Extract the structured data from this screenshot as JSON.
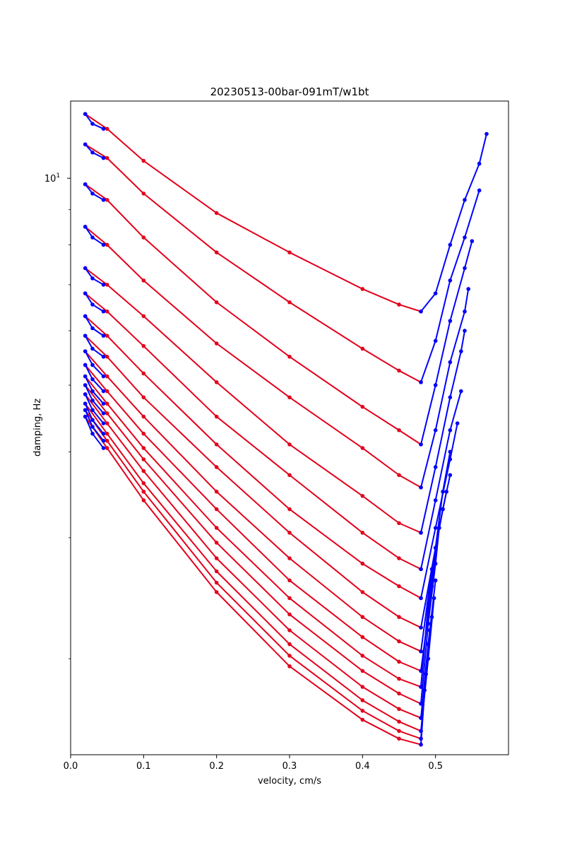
{
  "chart_data": {
    "type": "line",
    "title": "20230513-00bar-091mT/w1bt",
    "xlabel": "velocity, cm/s",
    "ylabel": "damping, Hz",
    "xscale": "linear",
    "yscale": "log",
    "xlim": [
      0.0,
      0.6
    ],
    "ylim": [
      1.45,
      12.95
    ],
    "grid": false,
    "xticks": [
      {
        "value": 0.0,
        "label": "0.0"
      },
      {
        "value": 0.1,
        "label": "0.1"
      },
      {
        "value": 0.2,
        "label": "0.2"
      },
      {
        "value": 0.3,
        "label": "0.3"
      },
      {
        "value": 0.4,
        "label": "0.4"
      },
      {
        "value": 0.5,
        "label": "0.5"
      }
    ],
    "ytick_major": {
      "value": 10,
      "label_base": "10",
      "label_exp": "1"
    },
    "ytick_minor": [
      2,
      3,
      4,
      5,
      6,
      7,
      8,
      9
    ],
    "colors": {
      "low_velocity": "#0000ff",
      "sweep": "#e3001b"
    },
    "series": [
      {
        "color_key": "sweep",
        "values": [
          [
            0.02,
            12.4
          ],
          [
            0.05,
            11.8
          ],
          [
            0.1,
            10.6
          ],
          [
            0.2,
            8.9
          ],
          [
            0.3,
            7.8
          ],
          [
            0.4,
            6.9
          ],
          [
            0.45,
            6.55
          ],
          [
            0.48,
            6.4
          ]
        ]
      },
      {
        "color_key": "sweep",
        "values": [
          [
            0.02,
            11.2
          ],
          [
            0.05,
            10.7
          ],
          [
            0.1,
            9.5
          ],
          [
            0.2,
            7.8
          ],
          [
            0.3,
            6.6
          ],
          [
            0.4,
            5.65
          ],
          [
            0.45,
            5.25
          ],
          [
            0.48,
            5.05
          ]
        ]
      },
      {
        "color_key": "sweep",
        "values": [
          [
            0.02,
            9.8
          ],
          [
            0.05,
            9.3
          ],
          [
            0.1,
            8.2
          ],
          [
            0.2,
            6.6
          ],
          [
            0.3,
            5.5
          ],
          [
            0.4,
            4.65
          ],
          [
            0.45,
            4.3
          ],
          [
            0.48,
            4.1
          ]
        ]
      },
      {
        "color_key": "sweep",
        "values": [
          [
            0.02,
            8.5
          ],
          [
            0.05,
            8.0
          ],
          [
            0.1,
            7.1
          ],
          [
            0.2,
            5.75
          ],
          [
            0.3,
            4.8
          ],
          [
            0.4,
            4.05
          ],
          [
            0.45,
            3.7
          ],
          [
            0.48,
            3.55
          ]
        ]
      },
      {
        "color_key": "sweep",
        "values": [
          [
            0.02,
            7.4
          ],
          [
            0.05,
            7.0
          ],
          [
            0.1,
            6.3
          ],
          [
            0.2,
            5.05
          ],
          [
            0.3,
            4.1
          ],
          [
            0.4,
            3.45
          ],
          [
            0.45,
            3.15
          ],
          [
            0.48,
            3.05
          ]
        ]
      },
      {
        "color_key": "sweep",
        "values": [
          [
            0.02,
            6.8
          ],
          [
            0.05,
            6.4
          ],
          [
            0.1,
            5.7
          ],
          [
            0.2,
            4.5
          ],
          [
            0.3,
            3.7
          ],
          [
            0.4,
            3.05
          ],
          [
            0.45,
            2.8
          ],
          [
            0.48,
            2.7
          ]
        ]
      },
      {
        "color_key": "sweep",
        "values": [
          [
            0.02,
            6.3
          ],
          [
            0.05,
            5.9
          ],
          [
            0.1,
            5.2
          ],
          [
            0.2,
            4.1
          ],
          [
            0.3,
            3.3
          ],
          [
            0.4,
            2.75
          ],
          [
            0.45,
            2.55
          ],
          [
            0.48,
            2.45
          ]
        ]
      },
      {
        "color_key": "sweep",
        "values": [
          [
            0.02,
            5.9
          ],
          [
            0.05,
            5.5
          ],
          [
            0.1,
            4.8
          ],
          [
            0.2,
            3.8
          ],
          [
            0.3,
            3.05
          ],
          [
            0.4,
            2.5
          ],
          [
            0.45,
            2.3
          ],
          [
            0.48,
            2.22
          ]
        ]
      },
      {
        "color_key": "sweep",
        "values": [
          [
            0.02,
            5.6
          ],
          [
            0.05,
            5.15
          ],
          [
            0.1,
            4.5
          ],
          [
            0.2,
            3.5
          ],
          [
            0.3,
            2.8
          ],
          [
            0.4,
            2.3
          ],
          [
            0.45,
            2.12
          ],
          [
            0.48,
            2.05
          ]
        ]
      },
      {
        "color_key": "sweep",
        "values": [
          [
            0.02,
            5.35
          ],
          [
            0.05,
            4.9
          ],
          [
            0.1,
            4.25
          ],
          [
            0.2,
            3.3
          ],
          [
            0.3,
            2.6
          ],
          [
            0.4,
            2.15
          ],
          [
            0.45,
            1.98
          ],
          [
            0.48,
            1.92
          ]
        ]
      },
      {
        "color_key": "sweep",
        "values": [
          [
            0.02,
            5.15
          ],
          [
            0.05,
            4.7
          ],
          [
            0.1,
            4.05
          ],
          [
            0.2,
            3.1
          ],
          [
            0.3,
            2.45
          ],
          [
            0.4,
            2.02
          ],
          [
            0.45,
            1.87
          ],
          [
            0.48,
            1.82
          ]
        ]
      },
      {
        "color_key": "sweep",
        "values": [
          [
            0.02,
            5.0
          ],
          [
            0.05,
            4.55
          ],
          [
            0.1,
            3.9
          ],
          [
            0.2,
            2.95
          ],
          [
            0.3,
            2.32
          ],
          [
            0.4,
            1.92
          ],
          [
            0.45,
            1.78
          ],
          [
            0.48,
            1.72
          ]
        ]
      },
      {
        "color_key": "sweep",
        "values": [
          [
            0.02,
            4.85
          ],
          [
            0.05,
            4.4
          ],
          [
            0.1,
            3.75
          ],
          [
            0.2,
            2.8
          ],
          [
            0.3,
            2.2
          ],
          [
            0.4,
            1.82
          ],
          [
            0.45,
            1.69
          ],
          [
            0.48,
            1.64
          ]
        ]
      },
      {
        "color_key": "sweep",
        "values": [
          [
            0.02,
            4.7
          ],
          [
            0.05,
            4.25
          ],
          [
            0.1,
            3.6
          ],
          [
            0.2,
            2.68
          ],
          [
            0.3,
            2.1
          ],
          [
            0.4,
            1.74
          ],
          [
            0.45,
            1.62
          ],
          [
            0.48,
            1.57
          ]
        ]
      },
      {
        "color_key": "sweep",
        "values": [
          [
            0.02,
            4.6
          ],
          [
            0.05,
            4.15
          ],
          [
            0.1,
            3.5
          ],
          [
            0.2,
            2.58
          ],
          [
            0.3,
            2.02
          ],
          [
            0.4,
            1.68
          ],
          [
            0.45,
            1.57
          ],
          [
            0.48,
            1.53
          ]
        ]
      },
      {
        "color_key": "sweep",
        "values": [
          [
            0.02,
            4.5
          ],
          [
            0.05,
            4.05
          ],
          [
            0.1,
            3.4
          ],
          [
            0.2,
            2.5
          ],
          [
            0.3,
            1.95
          ],
          [
            0.4,
            1.63
          ],
          [
            0.45,
            1.53
          ],
          [
            0.48,
            1.5
          ]
        ]
      },
      {
        "color_key": "low_velocity",
        "values": [
          [
            0.48,
            6.4
          ],
          [
            0.5,
            6.8
          ],
          [
            0.52,
            8.0
          ],
          [
            0.54,
            9.3
          ],
          [
            0.56,
            10.5
          ],
          [
            0.57,
            11.6
          ]
        ]
      },
      {
        "color_key": "low_velocity",
        "values": [
          [
            0.48,
            5.05
          ],
          [
            0.5,
            5.8
          ],
          [
            0.52,
            7.1
          ],
          [
            0.54,
            8.2
          ],
          [
            0.56,
            9.6
          ]
        ]
      },
      {
        "color_key": "low_velocity",
        "values": [
          [
            0.48,
            4.1
          ],
          [
            0.5,
            5.0
          ],
          [
            0.52,
            6.2
          ],
          [
            0.54,
            7.4
          ],
          [
            0.55,
            8.1
          ]
        ]
      },
      {
        "color_key": "low_velocity",
        "values": [
          [
            0.48,
            3.55
          ],
          [
            0.5,
            4.3
          ],
          [
            0.52,
            5.4
          ],
          [
            0.54,
            6.4
          ],
          [
            0.545,
            6.9
          ]
        ]
      },
      {
        "color_key": "low_velocity",
        "values": [
          [
            0.48,
            3.05
          ],
          [
            0.5,
            3.8
          ],
          [
            0.52,
            4.8
          ],
          [
            0.535,
            5.6
          ],
          [
            0.54,
            6.0
          ]
        ]
      },
      {
        "color_key": "low_velocity",
        "values": [
          [
            0.48,
            2.7
          ],
          [
            0.5,
            3.4
          ],
          [
            0.52,
            4.3
          ],
          [
            0.535,
            4.9
          ]
        ]
      },
      {
        "color_key": "low_velocity",
        "values": [
          [
            0.48,
            2.45
          ],
          [
            0.5,
            3.1
          ],
          [
            0.52,
            3.9
          ],
          [
            0.53,
            4.4
          ]
        ]
      },
      {
        "color_key": "low_velocity",
        "values": [
          [
            0.48,
            2.22
          ],
          [
            0.5,
            2.9
          ],
          [
            0.51,
            3.5
          ],
          [
            0.52,
            4.0
          ]
        ]
      },
      {
        "color_key": "low_velocity",
        "values": [
          [
            0.48,
            2.05
          ],
          [
            0.495,
            2.7
          ],
          [
            0.51,
            3.3
          ],
          [
            0.52,
            3.7
          ]
        ]
      },
      {
        "color_key": "low_velocity",
        "values": [
          [
            0.48,
            1.92
          ],
          [
            0.495,
            2.55
          ],
          [
            0.505,
            3.1
          ],
          [
            0.515,
            3.5
          ]
        ]
      },
      {
        "color_key": "low_velocity",
        "values": [
          [
            0.48,
            1.82
          ],
          [
            0.49,
            2.4
          ],
          [
            0.5,
            2.9
          ],
          [
            0.51,
            3.3
          ]
        ]
      },
      {
        "color_key": "low_velocity",
        "values": [
          [
            0.48,
            1.72
          ],
          [
            0.49,
            2.25
          ],
          [
            0.5,
            2.75
          ],
          [
            0.505,
            3.1
          ]
        ]
      },
      {
        "color_key": "low_velocity",
        "values": [
          [
            0.48,
            1.64
          ],
          [
            0.49,
            2.1
          ],
          [
            0.5,
            2.6
          ]
        ]
      },
      {
        "color_key": "low_velocity",
        "values": [
          [
            0.48,
            1.57
          ],
          [
            0.49,
            2.0
          ],
          [
            0.498,
            2.45
          ]
        ]
      },
      {
        "color_key": "low_velocity",
        "values": [
          [
            0.48,
            1.53
          ],
          [
            0.487,
            1.9
          ],
          [
            0.495,
            2.3
          ]
        ]
      },
      {
        "color_key": "low_velocity",
        "values": [
          [
            0.48,
            1.5
          ],
          [
            0.485,
            1.8
          ],
          [
            0.492,
            2.2
          ]
        ]
      },
      {
        "color_key": "low_velocity",
        "values": [
          [
            0.02,
            12.4
          ],
          [
            0.03,
            12.0
          ],
          [
            0.045,
            11.8
          ]
        ]
      },
      {
        "color_key": "low_velocity",
        "values": [
          [
            0.02,
            11.2
          ],
          [
            0.03,
            10.9
          ],
          [
            0.045,
            10.7
          ]
        ]
      },
      {
        "color_key": "low_velocity",
        "values": [
          [
            0.02,
            9.8
          ],
          [
            0.03,
            9.5
          ],
          [
            0.045,
            9.3
          ]
        ]
      },
      {
        "color_key": "low_velocity",
        "values": [
          [
            0.02,
            8.5
          ],
          [
            0.03,
            8.2
          ],
          [
            0.045,
            8.0
          ]
        ]
      },
      {
        "color_key": "low_velocity",
        "values": [
          [
            0.02,
            7.4
          ],
          [
            0.03,
            7.15
          ],
          [
            0.045,
            7.0
          ]
        ]
      },
      {
        "color_key": "low_velocity",
        "values": [
          [
            0.02,
            6.8
          ],
          [
            0.03,
            6.55
          ],
          [
            0.045,
            6.4
          ]
        ]
      },
      {
        "color_key": "low_velocity",
        "values": [
          [
            0.02,
            6.3
          ],
          [
            0.03,
            6.05
          ],
          [
            0.045,
            5.9
          ]
        ]
      },
      {
        "color_key": "low_velocity",
        "values": [
          [
            0.02,
            5.9
          ],
          [
            0.03,
            5.65
          ],
          [
            0.045,
            5.5
          ]
        ]
      },
      {
        "color_key": "low_velocity",
        "values": [
          [
            0.02,
            5.6
          ],
          [
            0.03,
            5.35
          ],
          [
            0.045,
            5.15
          ]
        ]
      },
      {
        "color_key": "low_velocity",
        "values": [
          [
            0.02,
            5.35
          ],
          [
            0.03,
            5.1
          ],
          [
            0.045,
            4.9
          ]
        ]
      },
      {
        "color_key": "low_velocity",
        "values": [
          [
            0.02,
            5.15
          ],
          [
            0.03,
            4.9
          ],
          [
            0.045,
            4.7
          ]
        ]
      },
      {
        "color_key": "low_velocity",
        "values": [
          [
            0.02,
            5.0
          ],
          [
            0.03,
            4.75
          ],
          [
            0.045,
            4.55
          ]
        ]
      },
      {
        "color_key": "low_velocity",
        "values": [
          [
            0.02,
            4.85
          ],
          [
            0.03,
            4.6
          ],
          [
            0.045,
            4.4
          ]
        ]
      },
      {
        "color_key": "low_velocity",
        "values": [
          [
            0.02,
            4.7
          ],
          [
            0.03,
            4.45
          ],
          [
            0.045,
            4.25
          ]
        ]
      },
      {
        "color_key": "low_velocity",
        "values": [
          [
            0.02,
            4.6
          ],
          [
            0.03,
            4.35
          ],
          [
            0.045,
            4.15
          ]
        ]
      },
      {
        "color_key": "low_velocity",
        "values": [
          [
            0.02,
            4.5
          ],
          [
            0.03,
            4.25
          ],
          [
            0.045,
            4.05
          ]
        ]
      }
    ]
  }
}
